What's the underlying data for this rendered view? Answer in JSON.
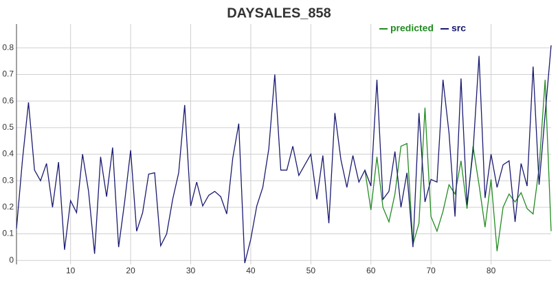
{
  "chart_data": {
    "type": "line",
    "title": "DAYSALES_858",
    "x": [
      1,
      2,
      3,
      4,
      5,
      6,
      7,
      8,
      9,
      10,
      11,
      12,
      13,
      14,
      15,
      16,
      17,
      18,
      19,
      20,
      21,
      22,
      23,
      24,
      25,
      26,
      27,
      28,
      29,
      30,
      31,
      32,
      33,
      34,
      35,
      36,
      37,
      38,
      39,
      40,
      41,
      42,
      43,
      44,
      45,
      46,
      47,
      48,
      49,
      50,
      51,
      52,
      53,
      54,
      55,
      56,
      57,
      58,
      59,
      60,
      61,
      62,
      63,
      64,
      65,
      66,
      67,
      68,
      69,
      70,
      71,
      72,
      73,
      74,
      75,
      76,
      77,
      78,
      79,
      80,
      81,
      82,
      83,
      84,
      85,
      86,
      87,
      88,
      89,
      90
    ],
    "series": [
      {
        "name": "predicted",
        "color": "#228b22",
        "values": [
          null,
          null,
          null,
          null,
          null,
          null,
          null,
          null,
          null,
          null,
          null,
          null,
          null,
          null,
          null,
          null,
          null,
          null,
          null,
          null,
          null,
          null,
          null,
          null,
          null,
          null,
          null,
          null,
          null,
          null,
          null,
          null,
          null,
          null,
          null,
          null,
          null,
          null,
          null,
          null,
          null,
          null,
          null,
          null,
          null,
          null,
          null,
          null,
          null,
          null,
          null,
          null,
          null,
          null,
          null,
          null,
          null,
          null,
          0.34,
          0.19,
          0.39,
          0.2,
          0.145,
          0.25,
          0.43,
          0.44,
          0.06,
          0.14,
          0.575,
          0.165,
          0.11,
          0.185,
          0.285,
          0.25,
          0.375,
          0.195,
          0.43,
          0.285,
          0.125,
          0.305,
          0.035,
          0.2,
          0.25,
          0.22,
          0.255,
          0.195,
          0.175,
          0.35,
          0.68,
          0.11
        ]
      },
      {
        "name": "src",
        "color": "#191970",
        "values": [
          0.12,
          0.38,
          0.595,
          0.34,
          0.3,
          0.365,
          0.2,
          0.37,
          0.04,
          0.225,
          0.18,
          0.4,
          0.26,
          0.025,
          0.39,
          0.24,
          0.425,
          0.05,
          0.22,
          0.415,
          0.11,
          0.18,
          0.325,
          0.33,
          0.055,
          0.1,
          0.23,
          0.33,
          0.585,
          0.205,
          0.295,
          0.205,
          0.245,
          0.26,
          0.24,
          0.175,
          0.385,
          0.515,
          -0.01,
          0.08,
          0.205,
          0.275,
          0.42,
          0.7,
          0.34,
          0.34,
          0.43,
          0.32,
          0.36,
          0.4,
          0.23,
          0.395,
          0.14,
          0.555,
          0.38,
          0.275,
          0.395,
          0.295,
          0.34,
          0.28,
          0.68,
          0.23,
          0.26,
          0.41,
          0.2,
          0.33,
          0.05,
          0.555,
          0.22,
          0.305,
          0.295,
          0.68,
          0.48,
          0.165,
          0.685,
          0.21,
          0.41,
          0.77,
          0.235,
          0.4,
          0.275,
          0.36,
          0.375,
          0.145,
          0.365,
          0.28,
          0.73,
          0.285,
          0.55,
          0.81
        ]
      }
    ],
    "xlim": [
      1,
      90
    ],
    "xticks": [
      10,
      20,
      30,
      40,
      50,
      60,
      70,
      80
    ],
    "ylim": [
      -0.015,
      0.89
    ],
    "yticks": [
      0,
      0.1,
      0.2,
      0.3,
      0.4,
      0.5,
      0.6,
      0.7,
      0.8
    ],
    "grid": true,
    "legend": "top-right"
  }
}
